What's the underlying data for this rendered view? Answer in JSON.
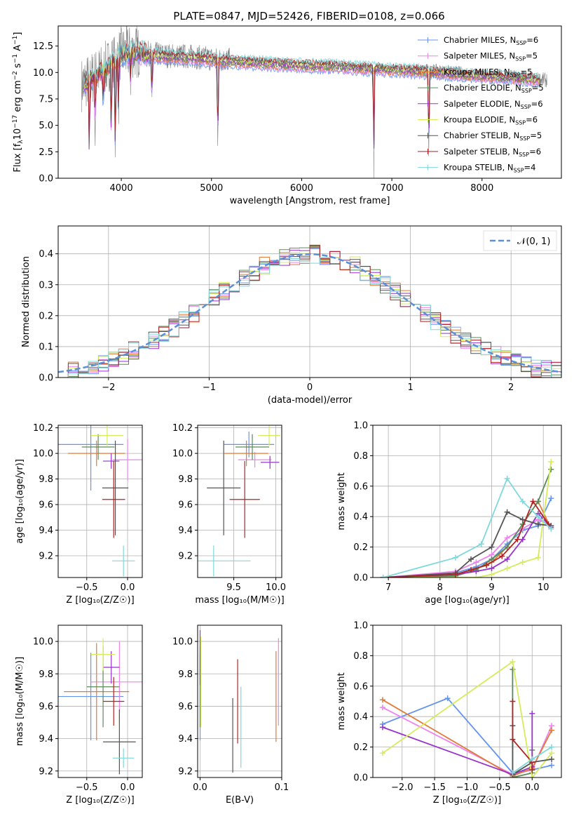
{
  "figure": {
    "title": "PLATE=0847, MJD=52426, FIBERID=0108, z=0.066"
  },
  "series": [
    {
      "key": "chab_miles",
      "label": "Chabrier MILES, N",
      "sub": "SSP",
      "suffix": "=6",
      "color": "#6495ed"
    },
    {
      "key": "salp_miles",
      "label": "Salpeter MILES, N",
      "sub": "SSP",
      "suffix": "=5",
      "color": "#ee82ee"
    },
    {
      "key": "krou_miles",
      "label": "Kroupa MILES, N",
      "sub": "SSP",
      "suffix": "=5",
      "color": "#e07b39"
    },
    {
      "key": "chab_elodie",
      "label": "Chabrier ELODIE, N",
      "sub": "SSP",
      "suffix": "=5",
      "color": "#5a8a5a"
    },
    {
      "key": "salp_elodie",
      "label": "Salpeter ELODIE, N",
      "sub": "SSP",
      "suffix": "=6",
      "color": "#9932cc"
    },
    {
      "key": "krou_elodie",
      "label": "Kroupa ELODIE, N",
      "sub": "SSP",
      "suffix": "=6",
      "color": "#d4ed5a"
    },
    {
      "key": "chab_stelib",
      "label": "Chabrier STELIB, N",
      "sub": "SSP",
      "suffix": "=5",
      "color": "#555555"
    },
    {
      "key": "salp_stelib",
      "label": "Salpeter STELIB, N",
      "sub": "SSP",
      "suffix": "=6",
      "color": "#b22222"
    },
    {
      "key": "krou_stelib",
      "label": "Kroupa STELIB, N",
      "sub": "SSP",
      "suffix": "=4",
      "color": "#7fd8dc"
    }
  ],
  "chart_data": [
    {
      "id": "spectrum",
      "type": "line",
      "xlabel": "wavelength [Angstrom, rest frame]",
      "ylabel_parts": [
        "Flux [f",
        "λ",
        "10",
        "−17",
        " erg cm",
        "−2",
        " s",
        "−1",
        " A",
        "−1",
        "]"
      ],
      "xlim": [
        3300,
        8880
      ],
      "ylim": [
        0,
        14.4
      ],
      "xticks": [
        4000,
        5000,
        6000,
        7000,
        8000
      ],
      "yticks": [
        0.0,
        2.5,
        5.0,
        7.5,
        10.0,
        12.5
      ],
      "data_color": "#808080",
      "continuum": {
        "x": [
          3550,
          3700,
          3850,
          4000,
          4150,
          4300,
          4500,
          4800,
          5100,
          5500,
          5900,
          6300,
          6700,
          7100,
          7500,
          7900,
          8300,
          8700
        ],
        "y": [
          8.8,
          9.6,
          10.6,
          11.8,
          12.0,
          11.8,
          11.6,
          11.5,
          11.2,
          11.0,
          10.8,
          10.7,
          10.5,
          10.3,
          10.1,
          9.8,
          9.6,
          9.3
        ]
      },
      "absorption_features": [
        {
          "x": 3645,
          "depth": 8.6
        },
        {
          "x": 3710,
          "depth": 5.9
        },
        {
          "x": 3800,
          "depth": 4.2
        },
        {
          "x": 3889,
          "depth": 8.5
        },
        {
          "x": 3934,
          "depth": 11.5
        },
        {
          "x": 3969,
          "depth": 6.0
        },
        {
          "x": 4102,
          "depth": 2.8
        },
        {
          "x": 4340,
          "depth": 5.2
        },
        {
          "x": 5070,
          "depth": 10.2
        },
        {
          "x": 6800,
          "depth": 10.1
        },
        {
          "x": 7410,
          "depth": 9.4
        }
      ]
    },
    {
      "id": "residuals",
      "type": "histogram",
      "xlabel": "(data-model)/error",
      "ylabel": "Normed distribution",
      "xlim": [
        -2.5,
        2.5
      ],
      "ylim": [
        0,
        0.49
      ],
      "xticks": [
        -2,
        -1,
        0,
        1,
        2
      ],
      "yticks": [
        0.0,
        0.1,
        0.2,
        0.3,
        0.4
      ],
      "legend": "𝒩(0, 1)",
      "legend_color": "#5b8fd6",
      "bins": {
        "start": -2.5,
        "width": 0.1,
        "count": 50
      },
      "gaussian": {
        "mu": 0,
        "sigma": 1
      }
    },
    {
      "id": "age_vs_z",
      "type": "errorbar",
      "xlabel": "Z [log₁₀(Z/Z☉)]",
      "ylabel": "age  [log₁₀(age/yr)]",
      "xlim": [
        -0.85,
        0.18
      ],
      "ylim": [
        9.03,
        10.22
      ],
      "xticks": [
        -0.5,
        0.0
      ],
      "yticks": [
        9.2,
        9.4,
        9.6,
        9.8,
        10.0,
        10.2
      ],
      "points": [
        {
          "s": "chab_miles",
          "x": -0.45,
          "xerr": 0.4,
          "y": 10.07,
          "yerr": 0.36
        },
        {
          "s": "salp_miles",
          "x": 0.0,
          "xerr": 0.18,
          "y": 9.95,
          "yerr": 0.16
        },
        {
          "s": "krou_miles",
          "x": -0.38,
          "xerr": 0.35,
          "y": 10.0,
          "yerr": 0.1
        },
        {
          "s": "chab_elodie",
          "x": -0.36,
          "xerr": 0.2,
          "y": 10.05,
          "yerr": 0.1
        },
        {
          "s": "salp_elodie",
          "x": -0.2,
          "xerr": 0.1,
          "y": 9.94,
          "yerr": 0.06
        },
        {
          "s": "krou_elodie",
          "x": -0.25,
          "xerr": 0.2,
          "y": 10.14,
          "yerr": 0.08
        },
        {
          "s": "chab_stelib",
          "x": -0.15,
          "xerr": 0.16,
          "y": 9.73,
          "yerr": 0.37
        },
        {
          "s": "salp_stelib",
          "x": -0.17,
          "xerr": 0.14,
          "y": 9.64,
          "yerr": 0.3
        },
        {
          "s": "krou_stelib",
          "x": -0.05,
          "xerr": 0.14,
          "y": 9.16,
          "yerr": 0.12
        }
      ]
    },
    {
      "id": "age_vs_mass",
      "type": "errorbar",
      "xlabel": "mass [log₁₀(M/M☉)]",
      "ylabel": "",
      "xlim": [
        9.07,
        10.07
      ],
      "ylim": [
        9.03,
        10.22
      ],
      "xticks": [
        9.5,
        10.0
      ],
      "yticks": [
        9.2,
        9.4,
        9.6,
        9.8,
        10.0,
        10.2
      ],
      "points": [
        {
          "s": "chab_miles",
          "x": 9.68,
          "xerr": 0.3,
          "y": 10.07,
          "yerr": 0.1
        },
        {
          "s": "salp_miles",
          "x": 9.75,
          "xerr": 0.2,
          "y": 9.95,
          "yerr": 0.06
        },
        {
          "s": "krou_miles",
          "x": 9.65,
          "xerr": 0.26,
          "y": 10.0,
          "yerr": 0.1
        },
        {
          "s": "chab_elodie",
          "x": 9.72,
          "xerr": 0.2,
          "y": 10.05,
          "yerr": 0.1
        },
        {
          "s": "salp_elodie",
          "x": 9.93,
          "xerr": 0.11,
          "y": 9.93,
          "yerr": 0.05
        },
        {
          "s": "krou_elodie",
          "x": 9.92,
          "xerr": 0.13,
          "y": 10.14,
          "yerr": 0.08
        },
        {
          "s": "chab_stelib",
          "x": 9.38,
          "xerr": 0.2,
          "y": 9.73,
          "yerr": 0.37
        },
        {
          "s": "salp_stelib",
          "x": 9.63,
          "xerr": 0.18,
          "y": 9.64,
          "yerr": 0.3
        },
        {
          "s": "krou_stelib",
          "x": 9.26,
          "xerr": 0.44,
          "y": 9.16,
          "yerr": 0.12
        }
      ]
    },
    {
      "id": "weight_vs_age",
      "type": "line",
      "xlabel": "age  [log₁₀(age/yr)]",
      "ylabel": "mass weight",
      "xlim": [
        6.7,
        10.35
      ],
      "ylim": [
        0,
        1.0
      ],
      "xticks": [
        7,
        8,
        9,
        10
      ],
      "yticks": [
        0.0,
        0.2,
        0.4,
        0.6,
        0.8,
        1.0
      ],
      "lines": [
        {
          "s": "krou_miles",
          "x": [
            6.9,
            8.3,
            8.7,
            9.0,
            9.3,
            9.6,
            9.9,
            10.15
          ],
          "y": [
            0.0,
            0.02,
            0.06,
            0.1,
            0.2,
            0.35,
            0.5,
            0.32
          ]
        },
        {
          "s": "chab_miles",
          "x": [
            6.9,
            8.3,
            8.7,
            9.0,
            9.3,
            9.6,
            9.9,
            10.15
          ],
          "y": [
            0.0,
            0.03,
            0.07,
            0.12,
            0.22,
            0.31,
            0.34,
            0.52
          ]
        },
        {
          "s": "salp_miles",
          "x": [
            6.9,
            8.3,
            8.7,
            9.0,
            9.3,
            9.6,
            9.9,
            10.15
          ],
          "y": [
            0.0,
            0.04,
            0.1,
            0.15,
            0.26,
            0.32,
            0.38,
            0.34
          ]
        },
        {
          "s": "chab_elodie",
          "x": [
            6.9,
            8.3,
            8.7,
            9.0,
            9.3,
            9.6,
            9.9,
            10.15
          ],
          "y": [
            0.0,
            0.01,
            0.05,
            0.12,
            0.2,
            0.35,
            0.5,
            0.71
          ]
        },
        {
          "s": "salp_elodie",
          "x": [
            6.9,
            8.3,
            8.7,
            9.0,
            9.3,
            9.6,
            9.9,
            10.15
          ],
          "y": [
            0.0,
            0.02,
            0.04,
            0.06,
            0.12,
            0.25,
            0.42,
            0.33
          ]
        },
        {
          "s": "krou_elodie",
          "x": [
            6.9,
            8.3,
            8.7,
            9.0,
            9.3,
            9.6,
            9.9,
            10.15
          ],
          "y": [
            0.0,
            0.0,
            0.0,
            0.02,
            0.06,
            0.1,
            0.13,
            0.76
          ]
        },
        {
          "s": "chab_stelib",
          "x": [
            6.9,
            8.3,
            8.6,
            9.0,
            9.3,
            9.6,
            9.9,
            10.15
          ],
          "y": [
            0.0,
            0.03,
            0.12,
            0.2,
            0.43,
            0.38,
            0.35,
            0.34
          ]
        },
        {
          "s": "salp_stelib",
          "x": [
            6.9,
            8.3,
            8.6,
            8.9,
            9.2,
            9.5,
            9.8,
            10.1
          ],
          "y": [
            0.0,
            0.02,
            0.05,
            0.08,
            0.14,
            0.25,
            0.5,
            0.35
          ]
        },
        {
          "s": "krou_stelib",
          "x": [
            6.9,
            8.3,
            8.8,
            9.3,
            9.6,
            9.9,
            10.15
          ],
          "y": [
            0.0,
            0.13,
            0.22,
            0.65,
            0.5,
            0.4,
            0.32
          ]
        }
      ]
    },
    {
      "id": "mass_vs_z",
      "type": "errorbar",
      "xlabel": "Z [log₁₀(Z/Z☉)]",
      "ylabel": "mass [log₁₀(M/M☉)]",
      "xlim": [
        -0.85,
        0.18
      ],
      "ylim": [
        9.16,
        10.1
      ],
      "xticks": [
        -0.5,
        0.0
      ],
      "yticks": [
        9.2,
        9.4,
        9.6,
        9.8,
        10.0
      ],
      "points": [
        {
          "s": "chab_miles",
          "x": -0.45,
          "xerr": 0.4,
          "y": 9.66,
          "yerr": 0.27
        },
        {
          "s": "salp_miles",
          "x": -0.1,
          "xerr": 0.35,
          "y": 9.75,
          "yerr": 0.25
        },
        {
          "s": "krou_miles",
          "x": -0.38,
          "xerr": 0.4,
          "y": 9.69,
          "yerr": 0.3
        },
        {
          "s": "chab_elodie",
          "x": -0.3,
          "xerr": 0.2,
          "y": 9.72,
          "yerr": 0.25
        },
        {
          "s": "salp_elodie",
          "x": -0.2,
          "xerr": 0.1,
          "y": 9.84,
          "yerr": 0.1
        },
        {
          "s": "krou_elodie",
          "x": -0.3,
          "xerr": 0.15,
          "y": 9.92,
          "yerr": 0.1
        },
        {
          "s": "chab_stelib",
          "x": -0.1,
          "xerr": 0.2,
          "y": 9.38,
          "yerr": 0.2
        },
        {
          "s": "salp_stelib",
          "x": -0.17,
          "xerr": 0.13,
          "y": 9.63,
          "yerr": 0.15
        },
        {
          "s": "krou_stelib",
          "x": -0.05,
          "xerr": 0.13,
          "y": 9.28,
          "yerr": 0.06
        }
      ]
    },
    {
      "id": "mass_vs_ebv",
      "type": "errorbar",
      "xlabel": "E(B-V)",
      "ylabel": "",
      "xlim": [
        -0.003,
        0.1
      ],
      "ylim": [
        9.16,
        10.1
      ],
      "xticks": [
        0.0,
        0.1
      ],
      "yticks": [
        9.2,
        9.4,
        9.6,
        9.8,
        10.0
      ],
      "points": [
        {
          "s": "chab_miles",
          "x": 0.0,
          "xerr": 0.0,
          "y": 9.66,
          "yerr": 0.27
        },
        {
          "s": "salp_miles",
          "x": 0.096,
          "xerr": 0.0,
          "y": 9.75,
          "yerr": 0.27
        },
        {
          "s": "krou_miles",
          "x": 0.093,
          "xerr": 0.0,
          "y": 9.66,
          "yerr": 0.28
        },
        {
          "s": "chab_elodie",
          "x": 0.0,
          "xerr": 0.0,
          "y": 9.72,
          "yerr": 0.25
        },
        {
          "s": "salp_elodie",
          "x": 0.0,
          "xerr": 0.0,
          "y": 9.9,
          "yerr": 0.17
        },
        {
          "s": "krou_elodie",
          "x": 0.001,
          "xerr": 0.0,
          "y": 9.75,
          "yerr": 0.28
        },
        {
          "s": "chab_stelib",
          "x": 0.04,
          "xerr": 0.0,
          "y": 9.42,
          "yerr": 0.23
        },
        {
          "s": "salp_stelib",
          "x": 0.046,
          "xerr": 0.0,
          "y": 9.63,
          "yerr": 0.26
        },
        {
          "s": "krou_stelib",
          "x": 0.05,
          "xerr": 0.0,
          "y": 9.47,
          "yerr": 0.25
        }
      ]
    },
    {
      "id": "weight_vs_z",
      "type": "line",
      "xlabel": "Z [log₁₀(Z/Z☉)]",
      "ylabel": "mass weight",
      "xlim": [
        -2.45,
        0.45
      ],
      "ylim": [
        0,
        1.0
      ],
      "xticks": [
        -2.0,
        -1.5,
        -1.0,
        -0.5,
        0.0
      ],
      "yticks": [
        0.0,
        0.2,
        0.4,
        0.6,
        0.8,
        1.0
      ],
      "lines": [
        {
          "s": "chab_miles",
          "x": [
            -2.3,
            -1.3,
            -0.3,
            0.0,
            0.3
          ],
          "y": [
            0.35,
            0.52,
            0.03,
            0.05,
            0.08
          ]
        },
        {
          "s": "salp_miles",
          "x": [
            -2.3,
            -0.3,
            0.0,
            0.3
          ],
          "y": [
            0.46,
            0.02,
            0.05,
            0.34
          ]
        },
        {
          "s": "krou_miles",
          "x": [
            -2.3,
            -0.3,
            0.0,
            0.3
          ],
          "y": [
            0.51,
            0.01,
            0.06,
            0.31
          ]
        },
        {
          "s": "chab_elodie",
          "x": [
            -0.3,
            -0.3,
            0.0,
            0.0
          ],
          "y": [
            0.71,
            0.0,
            0.03,
            0.18
          ]
        },
        {
          "s": "salp_elodie",
          "x": [
            -2.3,
            -0.3,
            0.0,
            0.0
          ],
          "y": [
            0.33,
            0.02,
            0.07,
            0.42
          ]
        },
        {
          "s": "krou_elodie",
          "x": [
            -2.3,
            -0.3,
            0.0,
            0.3
          ],
          "y": [
            0.16,
            0.76,
            0.0,
            0.16
          ]
        },
        {
          "s": "chab_stelib",
          "x": [
            -0.3,
            -0.3,
            0.0,
            0.3
          ],
          "y": [
            0.34,
            0.02,
            0.1,
            0.12
          ]
        },
        {
          "s": "salp_stelib",
          "x": [
            -0.3,
            -0.3,
            0.0,
            0.0
          ],
          "y": [
            0.5,
            0.25,
            0.1,
            0.05
          ]
        },
        {
          "s": "krou_stelib",
          "x": [
            -0.3,
            0.0,
            0.3
          ],
          "y": [
            0.03,
            0.12,
            0.2
          ]
        }
      ]
    }
  ]
}
